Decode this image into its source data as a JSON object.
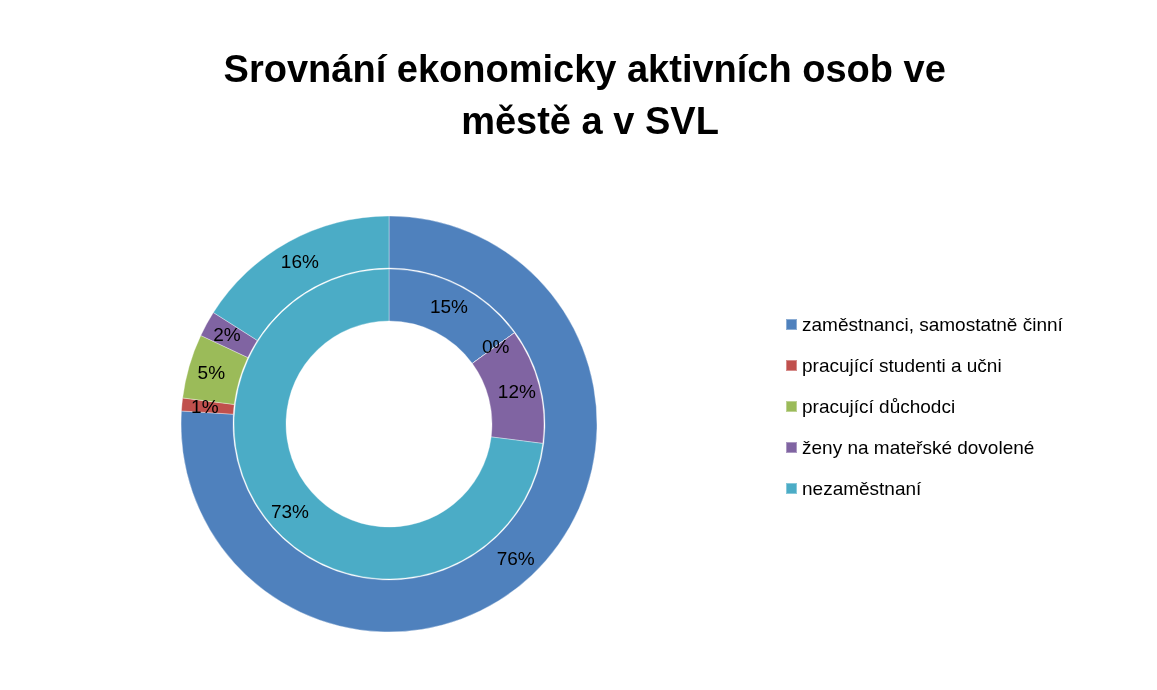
{
  "chart_data": {
    "type": "donut",
    "title": "Srovnání ekonomicky aktivních osob ve městě a v SVL",
    "categories": [
      "zaměstnanci, samostatně činní",
      "pracující studenti a učni",
      "pracující důchodci",
      "ženy na mateřské dovolené",
      "nezaměstnaní"
    ],
    "colors": [
      "#4f81bd",
      "#c0504d",
      "#9bbb59",
      "#8064a2",
      "#4bacc6"
    ],
    "series": [
      {
        "values": [
          76,
          1,
          5,
          2,
          16
        ],
        "value_labels": [
          "76%",
          "1%",
          "5%",
          "2%",
          "16%"
        ]
      },
      {
        "values": [
          15,
          0,
          0,
          12,
          73
        ],
        "value_labels": [
          "15%",
          "0%",
          null,
          "12%",
          "73%"
        ]
      }
    ],
    "legend": "right"
  }
}
